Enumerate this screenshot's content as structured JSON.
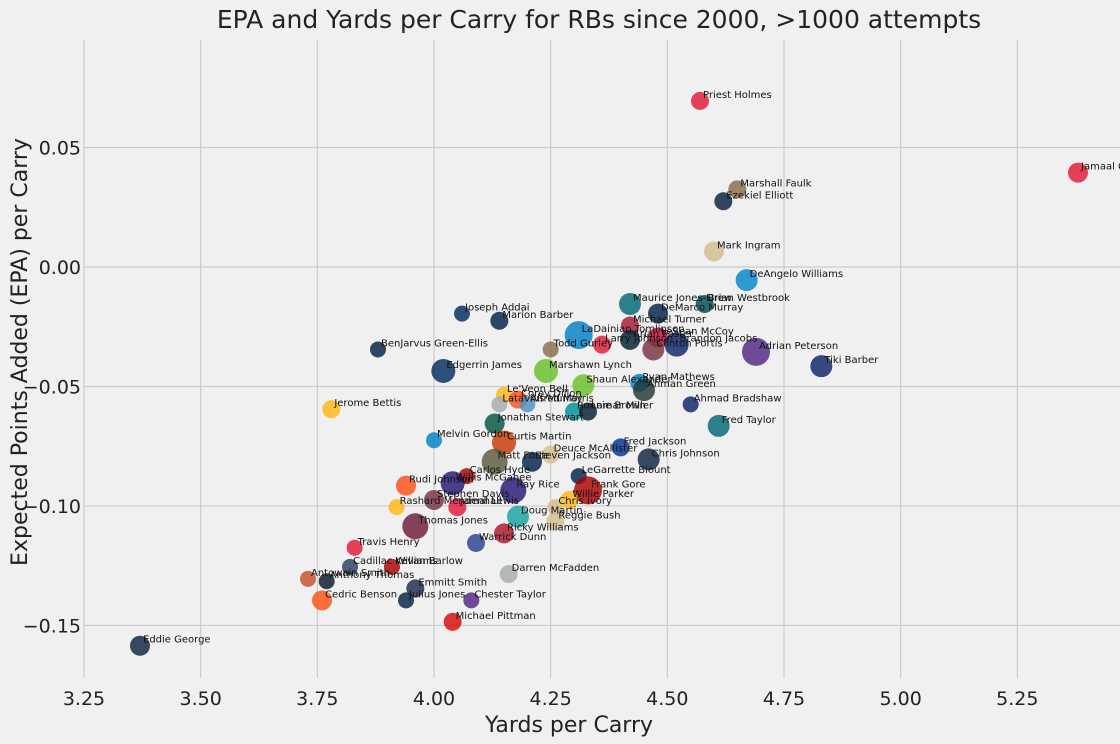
{
  "chart_data": {
    "type": "scatter",
    "title": "EPA and Yards per Carry for RBs since 2000, >1000 attempts",
    "xlabel": "Yards per Carry",
    "ylabel": "Expected Points Added (EPA) per Carry",
    "xlim": [
      3.25,
      5.47
    ],
    "ylim": [
      -0.172,
      0.095
    ],
    "xticks": [
      3.25,
      3.5,
      3.75,
      4.0,
      4.25,
      4.5,
      4.75,
      5.0,
      5.25
    ],
    "yticks": [
      0.05,
      0.0,
      -0.05,
      -0.1,
      -0.15
    ],
    "xtick_labels": [
      "3.25",
      "3.50",
      "3.75",
      "4.00",
      "4.25",
      "4.50",
      "4.75",
      "5.00",
      "5.25"
    ],
    "ytick_labels": [
      "0.05",
      "0.00",
      "−0.05",
      "−0.10",
      "−0.15"
    ],
    "grid": true,
    "points": [
      {
        "name": "Priest Holmes",
        "x": 4.57,
        "y": 0.0695,
        "color": "#e31837",
        "size": 9
      },
      {
        "name": "Jamaal Charles",
        "x": 5.38,
        "y": 0.0395,
        "color": "#e31837",
        "size": 10
      },
      {
        "name": "Marshall Faulk",
        "x": 4.65,
        "y": 0.0325,
        "color": "#866d4b",
        "size": 9
      },
      {
        "name": "Ezekiel Elliott",
        "x": 4.62,
        "y": 0.0275,
        "color": "#041e42",
        "size": 9
      },
      {
        "name": "Mark Ingram",
        "x": 4.6,
        "y": 0.0065,
        "color": "#d3bc8d",
        "size": 10
      },
      {
        "name": "DeAngelo Williams",
        "x": 4.67,
        "y": -0.0055,
        "color": "#0085ca",
        "size": 11
      },
      {
        "name": "Maurice Jones-Drew",
        "x": 4.42,
        "y": -0.0155,
        "color": "#006778",
        "size": 11
      },
      {
        "name": "Brian Westbrook",
        "x": 4.58,
        "y": -0.0155,
        "color": "#004c54",
        "size": 9
      },
      {
        "name": "DeMarco Murray",
        "x": 4.48,
        "y": -0.0195,
        "color": "#002244",
        "size": 10
      },
      {
        "name": "Joseph Addai",
        "x": 4.06,
        "y": -0.0195,
        "color": "#002c5f",
        "size": 8
      },
      {
        "name": "Marion Barber",
        "x": 4.14,
        "y": -0.0225,
        "color": "#002244",
        "size": 9
      },
      {
        "name": "Michael Turner",
        "x": 4.42,
        "y": -0.0245,
        "color": "#a71930",
        "size": 9
      },
      {
        "name": "LaDainian Tomlinson",
        "x": 4.31,
        "y": -0.0285,
        "color": "#0080c6",
        "size": 14
      },
      {
        "name": "Arian Foster",
        "x": 4.42,
        "y": -0.0305,
        "color": "#03202f",
        "size": 10
      },
      {
        "name": "LeSean McCoy",
        "x": 4.48,
        "y": -0.0295,
        "color": "#c60c30",
        "size": 10
      },
      {
        "name": "Larry Johnson",
        "x": 4.36,
        "y": -0.0325,
        "color": "#e31837",
        "size": 9
      },
      {
        "name": "BenJarvus Green-Ellis",
        "x": 3.88,
        "y": -0.0345,
        "color": "#002244",
        "size": 8
      },
      {
        "name": "Brandon Jacobs",
        "x": 4.52,
        "y": -0.0325,
        "color": "#0b2265",
        "size": 12
      },
      {
        "name": "Clinton Portis",
        "x": 4.47,
        "y": -0.0345,
        "color": "#773141",
        "size": 11
      },
      {
        "name": "Adrian Peterson",
        "x": 4.69,
        "y": -0.0355,
        "color": "#4f2683",
        "size": 14
      },
      {
        "name": "Todd Gurley",
        "x": 4.25,
        "y": -0.0345,
        "color": "#866d4b",
        "size": 8
      },
      {
        "name": "Edgerrin James",
        "x": 4.02,
        "y": -0.0435,
        "color": "#002c5f",
        "size": 12
      },
      {
        "name": "Marshawn Lynch",
        "x": 4.24,
        "y": -0.0435,
        "color": "#69be28",
        "size": 12
      },
      {
        "name": "Tiki Barber",
        "x": 4.83,
        "y": -0.0415,
        "color": "#0b2265",
        "size": 11
      },
      {
        "name": "Shaun Alexander",
        "x": 4.32,
        "y": -0.0495,
        "color": "#69be28",
        "size": 11
      },
      {
        "name": "Ryan Mathews",
        "x": 4.44,
        "y": -0.0485,
        "color": "#0080c6",
        "size": 9
      },
      {
        "name": "Ahman Green",
        "x": 4.45,
        "y": -0.0515,
        "color": "#203731",
        "size": 11
      },
      {
        "name": "Jerome Bettis",
        "x": 3.78,
        "y": -0.0595,
        "color": "#ffb612",
        "size": 9
      },
      {
        "name": "Le'Veon Bell",
        "x": 4.15,
        "y": -0.0535,
        "color": "#ffb612",
        "size": 8
      },
      {
        "name": "Corey Dillon",
        "x": 4.18,
        "y": -0.0555,
        "color": "#fb4f14",
        "size": 9
      },
      {
        "name": "Alfred Morris",
        "x": 4.2,
        "y": -0.0575,
        "color": "#4f8fbf",
        "size": 8
      },
      {
        "name": "Latavius Murray",
        "x": 4.14,
        "y": -0.0575,
        "color": "#a5acaf",
        "size": 8
      },
      {
        "name": "Ronnie Brown",
        "x": 4.3,
        "y": -0.0605,
        "color": "#008e97",
        "size": 9
      },
      {
        "name": "Lamar Miller",
        "x": 4.33,
        "y": -0.0605,
        "color": "#03202f",
        "size": 9
      },
      {
        "name": "Jonathan Stewart",
        "x": 4.13,
        "y": -0.0655,
        "color": "#00563f",
        "size": 10
      },
      {
        "name": "Ahmad Bradshaw",
        "x": 4.55,
        "y": -0.0575,
        "color": "#0b2265",
        "size": 8
      },
      {
        "name": "Fred Taylor",
        "x": 4.61,
        "y": -0.0665,
        "color": "#006778",
        "size": 11
      },
      {
        "name": "Melvin Gordon",
        "x": 4.0,
        "y": -0.0725,
        "color": "#0080c6",
        "size": 8
      },
      {
        "name": "Curtis Martin",
        "x": 4.15,
        "y": -0.0735,
        "color": "#c83803",
        "size": 12
      },
      {
        "name": "Matt Forte",
        "x": 4.13,
        "y": -0.0815,
        "color": "#5c5a3a",
        "size": 13
      },
      {
        "name": "Fred Jackson",
        "x": 4.4,
        "y": -0.0755,
        "color": "#00338d",
        "size": 9
      },
      {
        "name": "Deuce McAllister",
        "x": 4.25,
        "y": -0.0785,
        "color": "#d3bc8d",
        "size": 9
      },
      {
        "name": "Steven Jackson",
        "x": 4.21,
        "y": -0.0815,
        "color": "#002244",
        "size": 10
      },
      {
        "name": "Chris Johnson",
        "x": 4.46,
        "y": -0.0805,
        "color": "#0c2340",
        "size": 11
      },
      {
        "name": "Carlos Hyde",
        "x": 4.07,
        "y": -0.0875,
        "color": "#aa0000",
        "size": 8
      },
      {
        "name": "LeGarrette Blount",
        "x": 4.31,
        "y": -0.0875,
        "color": "#002244",
        "size": 8
      },
      {
        "name": "Rudi Johnson",
        "x": 3.94,
        "y": -0.0915,
        "color": "#fb4f14",
        "size": 10
      },
      {
        "name": "Willis McGahee",
        "x": 4.04,
        "y": -0.0905,
        "color": "#241773",
        "size": 12
      },
      {
        "name": "Ray Rice",
        "x": 4.17,
        "y": -0.0935,
        "color": "#241773",
        "size": 13
      },
      {
        "name": "Frank Gore",
        "x": 4.33,
        "y": -0.0935,
        "color": "#aa0000",
        "size": 14
      },
      {
        "name": "Stephen Davis",
        "x": 4.0,
        "y": -0.0975,
        "color": "#773141",
        "size": 10
      },
      {
        "name": "Willie Parker",
        "x": 4.29,
        "y": -0.0975,
        "color": "#ffb612",
        "size": 9
      },
      {
        "name": "Rashard Mendenhall",
        "x": 3.92,
        "y": -0.1005,
        "color": "#ffb612",
        "size": 8
      },
      {
        "name": "Jamal Lewis",
        "x": 4.05,
        "y": -0.1005,
        "color": "#e31837",
        "size": 9
      },
      {
        "name": "Chris Ivory",
        "x": 4.26,
        "y": -0.1005,
        "color": "#d3bc8d",
        "size": 8
      },
      {
        "name": "Doug Martin",
        "x": 4.18,
        "y": -0.1045,
        "color": "#19a0a3",
        "size": 11
      },
      {
        "name": "Reggie Bush",
        "x": 4.26,
        "y": -0.1065,
        "color": "#d3bc8d",
        "size": 9
      },
      {
        "name": "Thomas Jones",
        "x": 3.96,
        "y": -0.1085,
        "color": "#6d1a3b",
        "size": 13
      },
      {
        "name": "Ricky Williams",
        "x": 4.15,
        "y": -0.1115,
        "color": "#b0152e",
        "size": 10
      },
      {
        "name": "Warrick Dunn",
        "x": 4.09,
        "y": -0.1155,
        "color": "#2a3f8a",
        "size": 9
      },
      {
        "name": "Travis Henry",
        "x": 3.83,
        "y": -0.1175,
        "color": "#e31837",
        "size": 8
      },
      {
        "name": "Cadillac Williams",
        "x": 3.82,
        "y": -0.1255,
        "color": "#2a3f5c",
        "size": 8
      },
      {
        "name": "Kevan Barlow",
        "x": 3.91,
        "y": -0.1255,
        "color": "#aa0000",
        "size": 8
      },
      {
        "name": "Darren McFadden",
        "x": 4.16,
        "y": -0.1285,
        "color": "#a5acaf",
        "size": 9
      },
      {
        "name": "Antowain Smith",
        "x": 3.73,
        "y": -0.1305,
        "color": "#c0502a",
        "size": 8
      },
      {
        "name": "Anthony Thomas",
        "x": 3.77,
        "y": -0.1315,
        "color": "#0b162a",
        "size": 8
      },
      {
        "name": "Emmitt Smith",
        "x": 3.96,
        "y": -0.1345,
        "color": "#1c2a4a",
        "size": 9
      },
      {
        "name": "Chester Taylor",
        "x": 4.08,
        "y": -0.1395,
        "color": "#4f2683",
        "size": 8
      },
      {
        "name": "Cedric Benson",
        "x": 3.76,
        "y": -0.1395,
        "color": "#fb4f14",
        "size": 10
      },
      {
        "name": "Julius Jones",
        "x": 3.94,
        "y": -0.1395,
        "color": "#002244",
        "size": 8
      },
      {
        "name": "Michael Pittman",
        "x": 4.04,
        "y": -0.1485,
        "color": "#d50a0a",
        "size": 9
      },
      {
        "name": "Eddie George",
        "x": 3.37,
        "y": -0.1585,
        "color": "#0c2340",
        "size": 10
      }
    ]
  }
}
